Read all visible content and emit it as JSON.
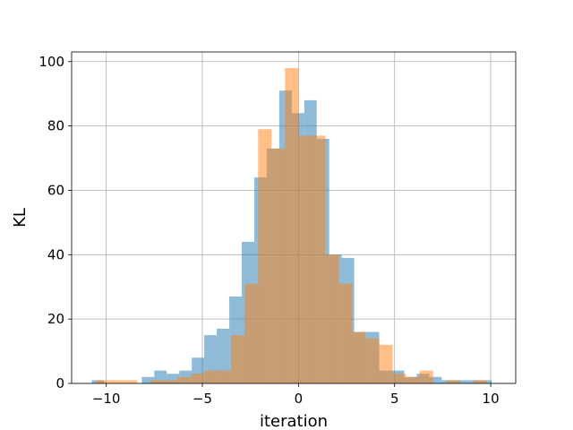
{
  "chart_data": {
    "type": "bar",
    "xlabel": "iteration",
    "ylabel": "KL",
    "xlim": [
      -11.8,
      11.3
    ],
    "ylim": [
      0,
      103
    ],
    "xticks": [
      -10,
      -5,
      0,
      5,
      10
    ],
    "yticks": [
      0,
      20,
      40,
      60,
      80,
      100
    ],
    "grid": true,
    "series": [
      {
        "color": "#1f77b4",
        "opacity": 0.5,
        "bins": [
          {
            "x0": -10.75,
            "x1": -10.1,
            "value": 1
          },
          {
            "x0": -10.1,
            "x1": -9.45,
            "value": 0
          },
          {
            "x0": -9.45,
            "x1": -8.8,
            "value": 0
          },
          {
            "x0": -8.8,
            "x1": -8.15,
            "value": 0
          },
          {
            "x0": -8.15,
            "x1": -7.5,
            "value": 2
          },
          {
            "x0": -7.5,
            "x1": -6.85,
            "value": 4
          },
          {
            "x0": -6.85,
            "x1": -6.2,
            "value": 3
          },
          {
            "x0": -6.2,
            "x1": -5.55,
            "value": 4
          },
          {
            "x0": -5.55,
            "x1": -4.9,
            "value": 8
          },
          {
            "x0": -4.9,
            "x1": -4.25,
            "value": 15
          },
          {
            "x0": -4.25,
            "x1": -3.6,
            "value": 17
          },
          {
            "x0": -3.6,
            "x1": -2.95,
            "value": 27
          },
          {
            "x0": -2.95,
            "x1": -2.3,
            "value": 44
          },
          {
            "x0": -2.3,
            "x1": -1.65,
            "value": 64
          },
          {
            "x0": -1.65,
            "x1": -1.0,
            "value": 73
          },
          {
            "x0": -1.0,
            "x1": -0.35,
            "value": 91
          },
          {
            "x0": -0.35,
            "x1": 0.3,
            "value": 84
          },
          {
            "x0": 0.3,
            "x1": 0.95,
            "value": 88
          },
          {
            "x0": 0.95,
            "x1": 1.6,
            "value": 76
          },
          {
            "x0": 1.6,
            "x1": 2.25,
            "value": 40
          },
          {
            "x0": 2.25,
            "x1": 2.9,
            "value": 39
          },
          {
            "x0": 2.9,
            "x1": 3.55,
            "value": 16
          },
          {
            "x0": 3.55,
            "x1": 4.2,
            "value": 16
          },
          {
            "x0": 4.2,
            "x1": 4.85,
            "value": 4
          },
          {
            "x0": 4.85,
            "x1": 5.5,
            "value": 4
          },
          {
            "x0": 5.5,
            "x1": 6.15,
            "value": 2
          },
          {
            "x0": 6.15,
            "x1": 6.8,
            "value": 3
          },
          {
            "x0": 6.8,
            "x1": 7.45,
            "value": 2
          },
          {
            "x0": 7.45,
            "x1": 8.1,
            "value": 1
          },
          {
            "x0": 8.1,
            "x1": 8.75,
            "value": 1
          },
          {
            "x0": 8.75,
            "x1": 9.4,
            "value": 1
          },
          {
            "x0": 9.4,
            "x1": 10.05,
            "value": 1
          }
        ]
      },
      {
        "color": "#ff7f0e",
        "opacity": 0.5,
        "bins": [
          {
            "x0": -10.5,
            "x1": -9.8,
            "value": 1
          },
          {
            "x0": -9.8,
            "x1": -9.1,
            "value": 1
          },
          {
            "x0": -9.1,
            "x1": -8.4,
            "value": 1
          },
          {
            "x0": -8.4,
            "x1": -7.7,
            "value": 0
          },
          {
            "x0": -7.7,
            "x1": -7.0,
            "value": 1
          },
          {
            "x0": -7.0,
            "x1": -6.3,
            "value": 1
          },
          {
            "x0": -6.3,
            "x1": -5.6,
            "value": 2
          },
          {
            "x0": -5.6,
            "x1": -4.9,
            "value": 3
          },
          {
            "x0": -4.9,
            "x1": -4.2,
            "value": 4
          },
          {
            "x0": -4.2,
            "x1": -3.5,
            "value": 4
          },
          {
            "x0": -3.5,
            "x1": -2.8,
            "value": 15
          },
          {
            "x0": -2.8,
            "x1": -2.1,
            "value": 31
          },
          {
            "x0": -2.1,
            "x1": -1.4,
            "value": 79
          },
          {
            "x0": -1.4,
            "x1": -0.7,
            "value": 73
          },
          {
            "x0": -0.7,
            "x1": 0.0,
            "value": 98
          },
          {
            "x0": 0.0,
            "x1": 0.7,
            "value": 77
          },
          {
            "x0": 0.7,
            "x1": 1.4,
            "value": 77
          },
          {
            "x0": 1.4,
            "x1": 2.1,
            "value": 40
          },
          {
            "x0": 2.1,
            "x1": 2.8,
            "value": 31
          },
          {
            "x0": 2.8,
            "x1": 3.5,
            "value": 16
          },
          {
            "x0": 3.5,
            "x1": 4.2,
            "value": 14
          },
          {
            "x0": 4.2,
            "x1": 4.9,
            "value": 12
          },
          {
            "x0": 4.9,
            "x1": 5.6,
            "value": 3
          },
          {
            "x0": 5.6,
            "x1": 6.3,
            "value": 2
          },
          {
            "x0": 6.3,
            "x1": 7.0,
            "value": 4
          },
          {
            "x0": 7.0,
            "x1": 7.7,
            "value": 0
          },
          {
            "x0": 7.7,
            "x1": 8.4,
            "value": 1
          },
          {
            "x0": 8.4,
            "x1": 9.1,
            "value": 0
          },
          {
            "x0": 9.1,
            "x1": 9.8,
            "value": 1
          },
          {
            "x0": 9.8,
            "x1": 10.5,
            "value": 0
          }
        ]
      }
    ]
  }
}
